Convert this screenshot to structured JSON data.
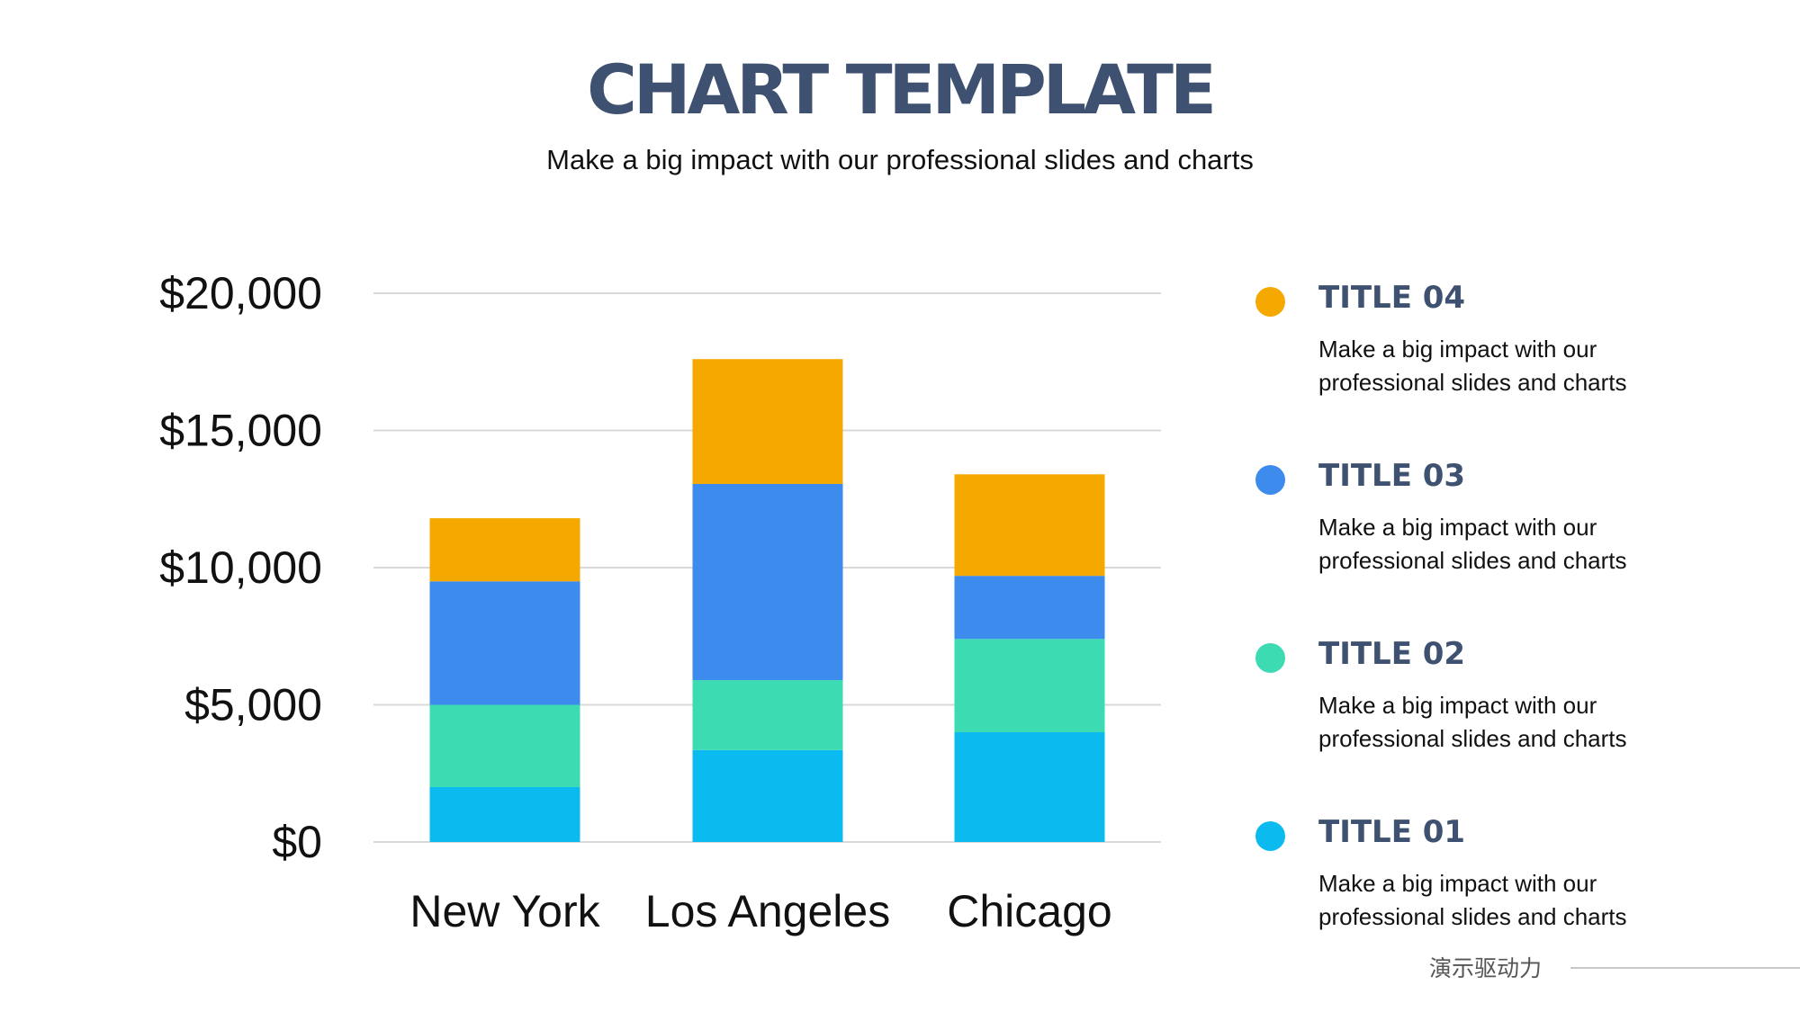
{
  "header": {
    "title": "CHART TEMPLATE",
    "subtitle": "Make a big impact with our professional slides and charts"
  },
  "chart_data": {
    "type": "bar",
    "stacked": true,
    "title": "",
    "xlabel": "",
    "ylabel": "",
    "ylim": [
      0,
      20000
    ],
    "yticks": [
      0,
      5000,
      10000,
      15000,
      20000
    ],
    "ytick_labels": [
      "$0",
      "$5,000",
      "$10,000",
      "$15,000",
      "$20,000"
    ],
    "grid": true,
    "legend_position": "right",
    "categories": [
      "New York",
      "Los Angeles",
      "Chicago"
    ],
    "series": [
      {
        "name": "TITLE 01",
        "color": "#0bbbef",
        "values": [
          2000,
          3350,
          4000
        ]
      },
      {
        "name": "TITLE 02",
        "color": "#3ddbb2",
        "values": [
          3000,
          2550,
          3400
        ]
      },
      {
        "name": "TITLE 03",
        "color": "#3d8bec",
        "values": [
          4500,
          7150,
          2300
        ]
      },
      {
        "name": "TITLE 04",
        "color": "#f5a800",
        "values": [
          2300,
          4550,
          3700
        ]
      }
    ]
  },
  "legend": {
    "items": [
      {
        "title": "TITLE 04",
        "color": "#f5a800",
        "desc": "Make a big impact with our professional slides and charts"
      },
      {
        "title": "TITLE 03",
        "color": "#3d8bec",
        "desc": "Make a big impact with our professional slides and charts"
      },
      {
        "title": "TITLE 02",
        "color": "#3ddbb2",
        "desc": "Make a big impact with our professional slides and charts"
      },
      {
        "title": "TITLE 01",
        "color": "#0bbbef",
        "desc": "Make a big impact with our professional slides and charts"
      }
    ]
  },
  "watermark": "演示驱动力"
}
